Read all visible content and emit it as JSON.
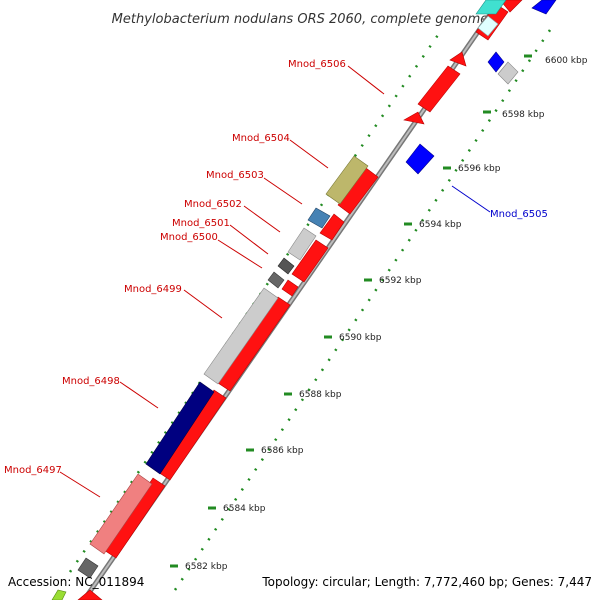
{
  "title": "Methylobacterium nodulans ORS 2060, complete genome",
  "footer": {
    "accession": "Accession: NC_011894",
    "topology": "Topology: circular; Length: 7,772,460 bp; Genes: 7,447"
  },
  "colors": {
    "forward_gene": "#ff0000",
    "reverse_gene": "#0000ff",
    "label_forward": "#cc0000",
    "label_reverse": "#0000cc",
    "backbone": "#999999",
    "tick": "#228b22"
  },
  "ticks": [
    {
      "label": "6582 kbp"
    },
    {
      "label": "6584 kbp"
    },
    {
      "label": "6586 kbp"
    },
    {
      "label": "6588 kbp"
    },
    {
      "label": "6590 kbp"
    },
    {
      "label": "6592 kbp"
    },
    {
      "label": "6594 kbp"
    },
    {
      "label": "6596 kbp"
    },
    {
      "label": "6598 kbp"
    },
    {
      "label": "6600 kbp"
    }
  ],
  "genes": [
    {
      "name": "Mnod_6497",
      "strand": "reverse"
    },
    {
      "name": "Mnod_6498",
      "strand": "reverse"
    },
    {
      "name": "Mnod_6499",
      "strand": "reverse"
    },
    {
      "name": "Mnod_6500",
      "strand": "reverse"
    },
    {
      "name": "Mnod_6501",
      "strand": "reverse"
    },
    {
      "name": "Mnod_6502",
      "strand": "reverse"
    },
    {
      "name": "Mnod_6503",
      "strand": "reverse"
    },
    {
      "name": "Mnod_6504",
      "strand": "reverse"
    },
    {
      "name": "Mnod_6505",
      "strand": "forward"
    },
    {
      "name": "Mnod_6506",
      "strand": "reverse"
    }
  ]
}
